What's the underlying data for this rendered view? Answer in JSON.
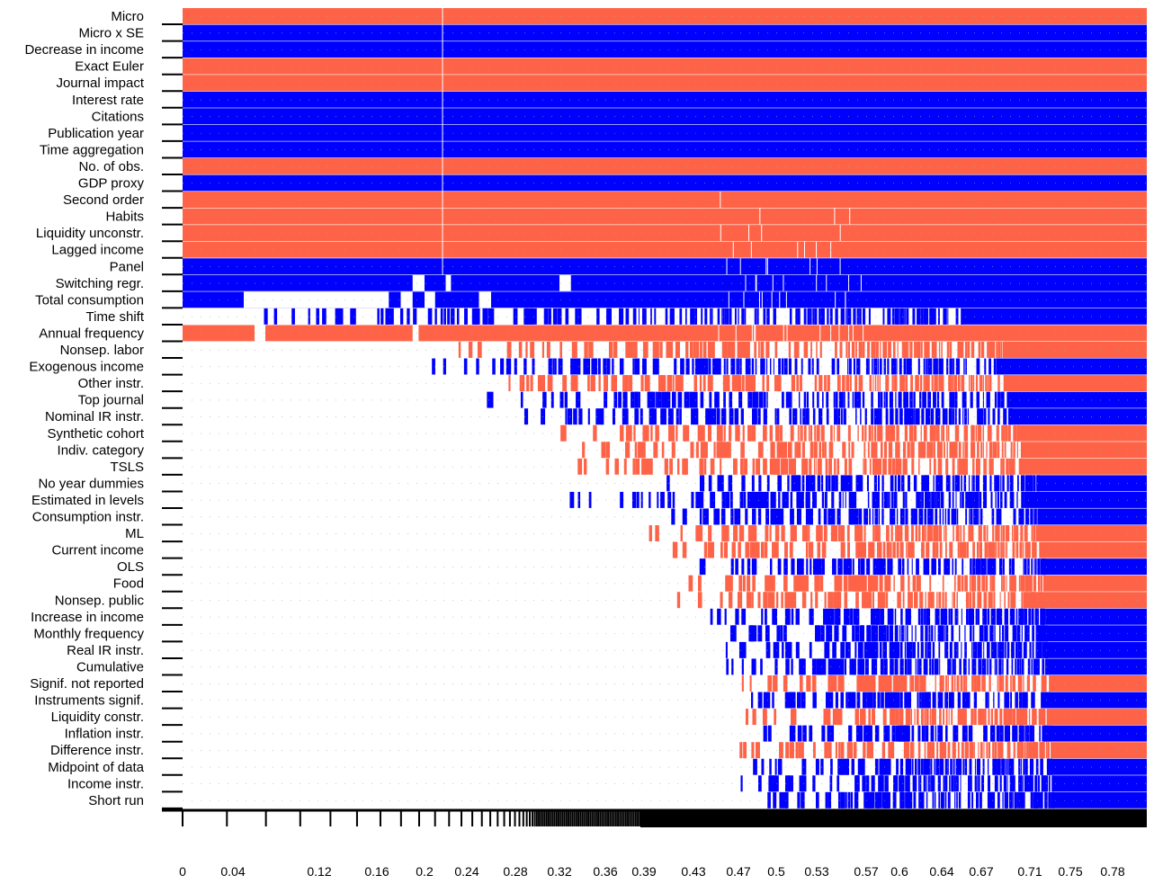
{
  "chart_data": {
    "type": "heatmap",
    "title": "",
    "xlabel": "",
    "ylabel": "",
    "colors": {
      "positive": "#ff6347",
      "negative": "#0000ff",
      "excluded": "#ffffff"
    },
    "x_tick_labels": [
      "0",
      "0.04",
      "0.12",
      "0.16",
      "0.2",
      "0.24",
      "0.28",
      "0.32",
      "0.36",
      "0.39",
      "0.43",
      "0.47",
      "0.5",
      "0.53",
      "0.57",
      "0.6",
      "0.64",
      "0.67",
      "0.71",
      "0.75",
      "0.78"
    ],
    "x_tick_values": [
      0,
      0.04,
      0.12,
      0.16,
      0.2,
      0.24,
      0.28,
      0.32,
      0.36,
      0.39,
      0.43,
      0.47,
      0.5,
      0.53,
      0.57,
      0.6,
      0.64,
      0.67,
      0.71,
      0.75,
      0.78
    ],
    "xlim": [
      0,
      0.79
    ],
    "variables": [
      {
        "name": "Micro",
        "sign": "positive",
        "start": 0
      },
      {
        "name": "Micro x SE",
        "sign": "negative",
        "start": 0
      },
      {
        "name": "Decrease in income",
        "sign": "negative",
        "start": 0
      },
      {
        "name": "Exact Euler",
        "sign": "positive",
        "start": 0
      },
      {
        "name": "Journal impact",
        "sign": "positive",
        "start": 0
      },
      {
        "name": "Interest rate",
        "sign": "negative",
        "start": 0
      },
      {
        "name": "Citations",
        "sign": "negative",
        "start": 0
      },
      {
        "name": "Publication year",
        "sign": "negative",
        "start": 0
      },
      {
        "name": "Time aggregation",
        "sign": "negative",
        "start": 0
      },
      {
        "name": "No. of obs.",
        "sign": "positive",
        "start": 0
      },
      {
        "name": "GDP proxy",
        "sign": "negative",
        "start": 0
      },
      {
        "name": "Second order",
        "sign": "positive",
        "start": 0
      },
      {
        "name": "Habits",
        "sign": "positive",
        "start": 0
      },
      {
        "name": "Liquidity unconstr.",
        "sign": "positive",
        "start": 0
      },
      {
        "name": "Lagged income",
        "sign": "positive",
        "start": 0
      },
      {
        "name": "Panel",
        "sign": "negative",
        "start": 0
      },
      {
        "name": "Switching regr.",
        "sign": "negative",
        "start": 0
      },
      {
        "name": "Total consumption",
        "sign": "negative",
        "start": 0
      },
      {
        "name": "Time shift",
        "sign": "negative",
        "start": 0.04
      },
      {
        "name": "Annual frequency",
        "sign": "positive",
        "start": 0
      },
      {
        "name": "Nonsep. labor",
        "sign": "positive",
        "start": 0.22
      },
      {
        "name": "Exogenous income",
        "sign": "negative",
        "start": 0.2
      },
      {
        "name": "Other instr.",
        "sign": "positive",
        "start": 0.23
      },
      {
        "name": "Top journal",
        "sign": "negative",
        "start": 0.24
      },
      {
        "name": "Nominal IR instr.",
        "sign": "negative",
        "start": 0.26
      },
      {
        "name": "Synthetic cohort",
        "sign": "positive",
        "start": 0.29
      },
      {
        "name": "Indiv. category",
        "sign": "positive",
        "start": 0.31
      },
      {
        "name": "TSLS",
        "sign": "positive",
        "start": 0.3
      },
      {
        "name": "No year dummies",
        "sign": "negative",
        "start": 0.39
      },
      {
        "name": "Estimated in levels",
        "sign": "negative",
        "start": 0.32
      },
      {
        "name": "Consumption instr.",
        "sign": "negative",
        "start": 0.39
      },
      {
        "name": "ML",
        "sign": "positive",
        "start": 0.38
      },
      {
        "name": "Current income",
        "sign": "positive",
        "start": 0.4
      },
      {
        "name": "OLS",
        "sign": "negative",
        "start": 0.42
      },
      {
        "name": "Food",
        "sign": "positive",
        "start": 0.42
      },
      {
        "name": "Nonsep. public",
        "sign": "positive",
        "start": 0.4
      },
      {
        "name": "Increase in income",
        "sign": "negative",
        "start": 0.43
      },
      {
        "name": "Monthly frequency",
        "sign": "negative",
        "start": 0.44
      },
      {
        "name": "Real IR instr.",
        "sign": "negative",
        "start": 0.44
      },
      {
        "name": "Cumulative",
        "sign": "negative",
        "start": 0.44
      },
      {
        "name": "Signif. not reported",
        "sign": "positive",
        "start": 0.45
      },
      {
        "name": "Instruments signif.",
        "sign": "negative",
        "start": 0.45
      },
      {
        "name": "Liquidity constr.",
        "sign": "positive",
        "start": 0.45
      },
      {
        "name": "Inflation instr.",
        "sign": "negative",
        "start": 0.46
      },
      {
        "name": "Difference instr.",
        "sign": "positive",
        "start": 0.46
      },
      {
        "name": "Midpoint of data",
        "sign": "negative",
        "start": 0.46
      },
      {
        "name": "Income instr.",
        "sign": "negative",
        "start": 0.47
      },
      {
        "name": "Short run",
        "sign": "negative",
        "start": 0.47
      }
    ]
  }
}
